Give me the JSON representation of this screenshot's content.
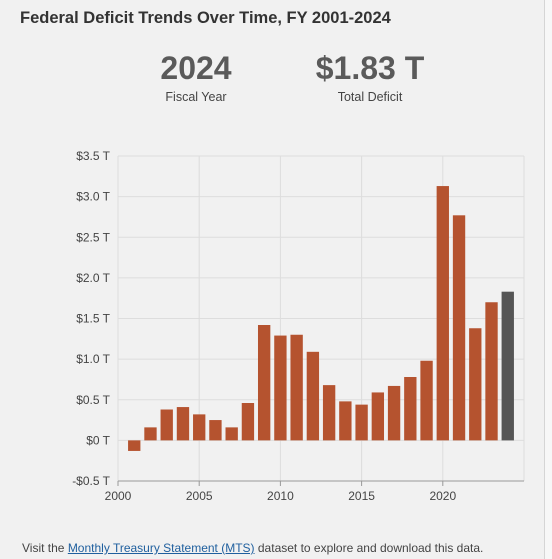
{
  "title": "Federal Deficit Trends Over Time, FY 2001-2024",
  "stats": {
    "year_value": "2024",
    "year_label": "Fiscal Year",
    "deficit_value": "$1.83 T",
    "deficit_label": "Total Deficit"
  },
  "footer": {
    "prefix": "Visit the ",
    "link_text": "Monthly Treasury Statement (MTS)",
    "suffix": " dataset to explore and download this data."
  },
  "colors": {
    "bar": "#b5532f",
    "highlight_bar": "#555555",
    "grid": "#dddddd"
  },
  "chart_data": {
    "type": "bar",
    "title": "Federal Deficit Trends Over Time, FY 2001-2024",
    "xlabel": "",
    "ylabel": "",
    "x": [
      2001,
      2002,
      2003,
      2004,
      2005,
      2006,
      2007,
      2008,
      2009,
      2010,
      2011,
      2012,
      2013,
      2014,
      2015,
      2016,
      2017,
      2018,
      2019,
      2020,
      2021,
      2022,
      2023,
      2024
    ],
    "values": [
      -0.13,
      0.16,
      0.38,
      0.41,
      0.32,
      0.25,
      0.16,
      0.46,
      1.42,
      1.29,
      1.3,
      1.09,
      0.68,
      0.48,
      0.44,
      0.59,
      0.67,
      0.78,
      0.98,
      3.13,
      2.77,
      1.38,
      1.7,
      1.83
    ],
    "highlight_x": 2024,
    "ylim": [
      -0.5,
      3.5
    ],
    "yticks": [
      -0.5,
      0,
      0.5,
      1.0,
      1.5,
      2.0,
      2.5,
      3.0,
      3.5
    ],
    "ytick_labels": [
      "-$0.5 T",
      "$0 T",
      "$0.5 T",
      "$1.0 T",
      "$1.5 T",
      "$2.0 T",
      "$2.5 T",
      "$3.0 T",
      "$3.5 T"
    ],
    "xlim": [
      2000,
      2025
    ],
    "xticks": [
      2000,
      2005,
      2010,
      2015,
      2020
    ],
    "xtick_labels": [
      "2000",
      "2005",
      "2010",
      "2015",
      "2020"
    ],
    "grid": true
  }
}
